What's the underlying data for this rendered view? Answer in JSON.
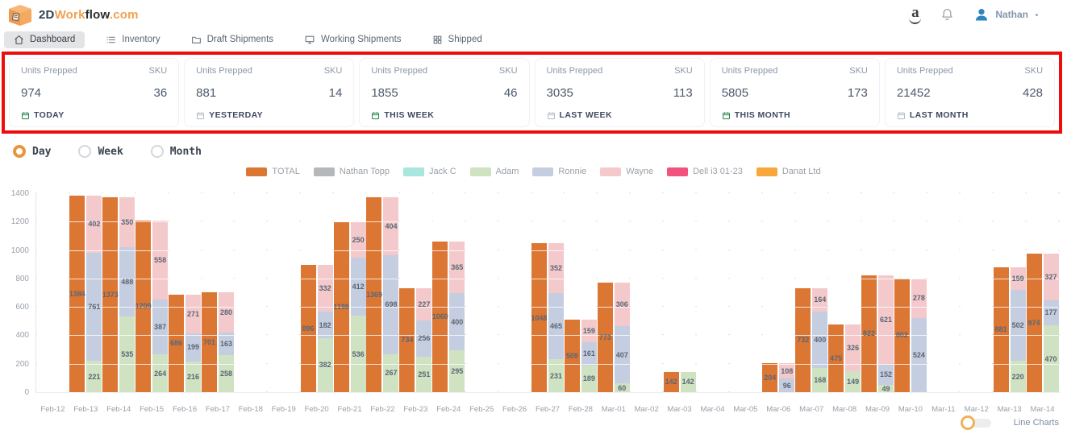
{
  "brand": {
    "part_2d": "2D",
    "part_work": "Work",
    "part_flow": "flow",
    "part_dotcom": ".com"
  },
  "header": {
    "user_name": "Nathan"
  },
  "nav": {
    "items": [
      {
        "label": "Dashboard",
        "icon": "home-icon",
        "active": true
      },
      {
        "label": "Inventory",
        "icon": "list-icon",
        "active": false
      },
      {
        "label": "Draft Shipments",
        "icon": "folder-icon",
        "active": false
      },
      {
        "label": "Working Shipments",
        "icon": "monitor-icon",
        "active": false
      },
      {
        "label": "Shipped",
        "icon": "grid-icon",
        "active": false
      }
    ]
  },
  "stats": {
    "cards": [
      {
        "units_label": "Units Prepped",
        "sku_label": "SKU",
        "units": "974",
        "sku": "36",
        "period": "TODAY",
        "accent": "#1e8449"
      },
      {
        "units_label": "Units Prepped",
        "sku_label": "SKU",
        "units": "881",
        "sku": "14",
        "period": "YESTERDAY",
        "accent": "#b2bac6"
      },
      {
        "units_label": "Units Prepped",
        "sku_label": "SKU",
        "units": "1855",
        "sku": "46",
        "period": "THIS WEEK",
        "accent": "#1e8449"
      },
      {
        "units_label": "Units Prepped",
        "sku_label": "SKU",
        "units": "3035",
        "sku": "113",
        "period": "LAST WEEK",
        "accent": "#b2bac6"
      },
      {
        "units_label": "Units Prepped",
        "sku_label": "SKU",
        "units": "5805",
        "sku": "173",
        "period": "THIS MONTH",
        "accent": "#1e8449"
      },
      {
        "units_label": "Units Prepped",
        "sku_label": "SKU",
        "units": "21452",
        "sku": "428",
        "period": "LAST MONTH",
        "accent": "#b2bac6"
      }
    ]
  },
  "controls": {
    "options": [
      {
        "label": "Day",
        "selected": true
      },
      {
        "label": "Week",
        "selected": false
      },
      {
        "label": "Month",
        "selected": false
      }
    ],
    "line_charts_label": "Line Charts"
  },
  "chart_data": {
    "type": "bar",
    "title": "",
    "xlabel": "",
    "ylabel": "",
    "ylim": [
      0,
      1400
    ],
    "yticks": [
      0,
      200,
      400,
      600,
      800,
      1000,
      1200,
      1400
    ],
    "grid": "dot-grid",
    "legend_position": "top-center",
    "categories": [
      "Feb-12",
      "Feb-13",
      "Feb-14",
      "Feb-15",
      "Feb-16",
      "Feb-17",
      "Feb-18",
      "Feb-19",
      "Feb-20",
      "Feb-21",
      "Feb-22",
      "Feb-23",
      "Feb-24",
      "Feb-25",
      "Feb-26",
      "Feb-27",
      "Feb-28",
      "Mar-01",
      "Mar-02",
      "Mar-03",
      "Mar-04",
      "Mar-05",
      "Mar-06",
      "Mar-07",
      "Mar-08",
      "Mar-09",
      "Mar-10",
      "Mar-11",
      "Mar-12",
      "Mar-13",
      "Mar-14"
    ],
    "legend": [
      {
        "name": "TOTAL",
        "color": "#dc7633"
      },
      {
        "name": "Nathan Topp",
        "color": "#b5b8ba"
      },
      {
        "name": "Jack C",
        "color": "#a9e6de"
      },
      {
        "name": "Adam",
        "color": "#cfe2c2"
      },
      {
        "name": "Ronnie",
        "color": "#c5cde0"
      },
      {
        "name": "Wayne",
        "color": "#f4c9cc"
      },
      {
        "name": "Dell i3 01-23",
        "color": "#f1537e"
      },
      {
        "name": "Danat Ltd",
        "color": "#f8a83b"
      }
    ],
    "days": [
      {
        "date": "Feb-13",
        "total": 1384,
        "segments": [
          [
            "Adam",
            221
          ],
          [
            "Ronnie",
            761
          ],
          [
            "Wayne",
            402
          ]
        ]
      },
      {
        "date": "Feb-14",
        "total": 1373,
        "segments": [
          [
            "Adam",
            535
          ],
          [
            "Ronnie",
            488
          ],
          [
            "Wayne",
            350
          ]
        ]
      },
      {
        "date": "Feb-15",
        "total": 1209,
        "segments": [
          [
            "Adam",
            264
          ],
          [
            "Ronnie",
            387
          ],
          [
            "Wayne",
            558
          ]
        ]
      },
      {
        "date": "Feb-16",
        "total": 686,
        "segments": [
          [
            "Adam",
            216
          ],
          [
            "Ronnie",
            199
          ],
          [
            "Wayne",
            271
          ]
        ]
      },
      {
        "date": "Feb-17",
        "total": 701,
        "segments": [
          [
            "Adam",
            258
          ],
          [
            "Ronnie",
            163
          ],
          [
            "Wayne",
            280
          ]
        ]
      },
      {
        "date": "Feb-20",
        "total": 896,
        "segments": [
          [
            "Adam",
            382
          ],
          [
            "Ronnie",
            182
          ],
          [
            "Wayne",
            332
          ]
        ]
      },
      {
        "date": "Feb-21",
        "total": 1198,
        "segments": [
          [
            "Adam",
            536
          ],
          [
            "Ronnie",
            412
          ],
          [
            "Wayne",
            250
          ]
        ]
      },
      {
        "date": "Feb-22",
        "total": 1369,
        "segments": [
          [
            "Adam",
            267
          ],
          [
            "Ronnie",
            698
          ],
          [
            "Wayne",
            404
          ]
        ]
      },
      {
        "date": "Feb-23",
        "total": 734,
        "segments": [
          [
            "Adam",
            251
          ],
          [
            "Ronnie",
            256
          ],
          [
            "Wayne",
            227
          ]
        ]
      },
      {
        "date": "Feb-24",
        "total": 1060,
        "segments": [
          [
            "Adam",
            295
          ],
          [
            "Ronnie",
            400
          ],
          [
            "Wayne",
            365
          ]
        ]
      },
      {
        "date": "Feb-27",
        "total": 1048,
        "segments": [
          [
            "Adam",
            231
          ],
          [
            "Ronnie",
            465
          ],
          [
            "Wayne",
            352
          ]
        ]
      },
      {
        "date": "Feb-28",
        "total": 509,
        "segments": [
          [
            "Adam",
            189
          ],
          [
            "Ronnie",
            161
          ],
          [
            "Wayne",
            159
          ]
        ]
      },
      {
        "date": "Mar-01",
        "total": 773,
        "segments": [
          [
            "Adam",
            60
          ],
          [
            "Ronnie",
            407
          ],
          [
            "Wayne",
            306
          ]
        ]
      },
      {
        "date": "Mar-03",
        "total": 142,
        "segments": [
          [
            "Adam",
            142
          ]
        ]
      },
      {
        "date": "Mar-06",
        "total": 204,
        "segments": [
          [
            "Ronnie",
            96
          ],
          [
            "Wayne",
            108
          ]
        ]
      },
      {
        "date": "Mar-07",
        "total": 732,
        "segments": [
          [
            "Adam",
            168
          ],
          [
            "Ronnie",
            400
          ],
          [
            "Wayne",
            164
          ]
        ]
      },
      {
        "date": "Mar-08",
        "total": 475,
        "segments": [
          [
            "Adam",
            149
          ],
          [
            "Wayne",
            326
          ]
        ]
      },
      {
        "date": "Mar-09",
        "total": 822,
        "segments": [
          [
            "Adam",
            49
          ],
          [
            "Ronnie",
            152
          ],
          [
            "Wayne",
            621
          ]
        ]
      },
      {
        "date": "Mar-10",
        "total": 802,
        "segments": [
          [
            "Ronnie",
            524
          ],
          [
            "Wayne",
            278
          ]
        ]
      },
      {
        "date": "Mar-13",
        "total": 881,
        "segments": [
          [
            "Adam",
            220
          ],
          [
            "Ronnie",
            502
          ],
          [
            "Wayne",
            159
          ]
        ]
      },
      {
        "date": "Mar-14",
        "total": 974,
        "segments": [
          [
            "Adam",
            470
          ],
          [
            "Ronnie",
            177
          ],
          [
            "Wayne",
            327
          ]
        ]
      }
    ]
  }
}
